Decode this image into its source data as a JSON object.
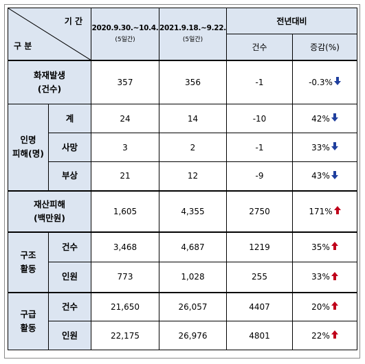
{
  "header": {
    "period_label": "기 간",
    "category_label": "구 분",
    "col2020_date": "2020.9.30.~10.4.",
    "col2020_days": "(5일간)",
    "col2021_date": "2021.9.18.~9.22.",
    "col2021_days": "(5일간)",
    "yoy": "전년대비",
    "count": "건수",
    "change": "증감(%)"
  },
  "rows": {
    "fire": {
      "label1": "화재발생",
      "label2": "(건수)",
      "v2020": "357",
      "v2021": "356",
      "diff": "-1",
      "pct": "-0.3%",
      "dir": "down"
    },
    "casualty_group": {
      "label1": "인명",
      "label2": "피해(명)"
    },
    "total": {
      "label": "계",
      "v2020": "24",
      "v2021": "14",
      "diff": "-10",
      "pct": "42%",
      "dir": "down"
    },
    "death": {
      "label": "사망",
      "v2020": "3",
      "v2021": "2",
      "diff": "-1",
      "pct": "33%",
      "dir": "down"
    },
    "injury": {
      "label": "부상",
      "v2020": "21",
      "v2021": "12",
      "diff": "-9",
      "pct": "43%",
      "dir": "down"
    },
    "property": {
      "label1": "재산피해",
      "label2": "(백만원)",
      "v2020": "1,605",
      "v2021": "4,355",
      "diff": "2750",
      "pct": "171%",
      "dir": "up"
    },
    "rescue_group": {
      "label1": "구조",
      "label2": "활동"
    },
    "rescue_count": {
      "label": "건수",
      "v2020": "3,468",
      "v2021": "4,687",
      "diff": "1219",
      "pct": "35%",
      "dir": "up"
    },
    "rescue_people": {
      "label": "인원",
      "v2020": "773",
      "v2021": "1,028",
      "diff": "255",
      "pct": "33%",
      "dir": "up"
    },
    "ems_group": {
      "label1": "구급",
      "label2": "활동"
    },
    "ems_count": {
      "label": "건수",
      "v2020": "21,650",
      "v2021": "26,057",
      "diff": "4407",
      "pct": "20%",
      "dir": "up"
    },
    "ems_people": {
      "label": "인원",
      "v2020": "22,175",
      "v2021": "26,976",
      "diff": "4801",
      "pct": "22%",
      "dir": "up"
    }
  },
  "colors": {
    "header_bg": "#dce5f1",
    "up_arrow": "#c0001a",
    "down_arrow": "#1f3f9e"
  }
}
